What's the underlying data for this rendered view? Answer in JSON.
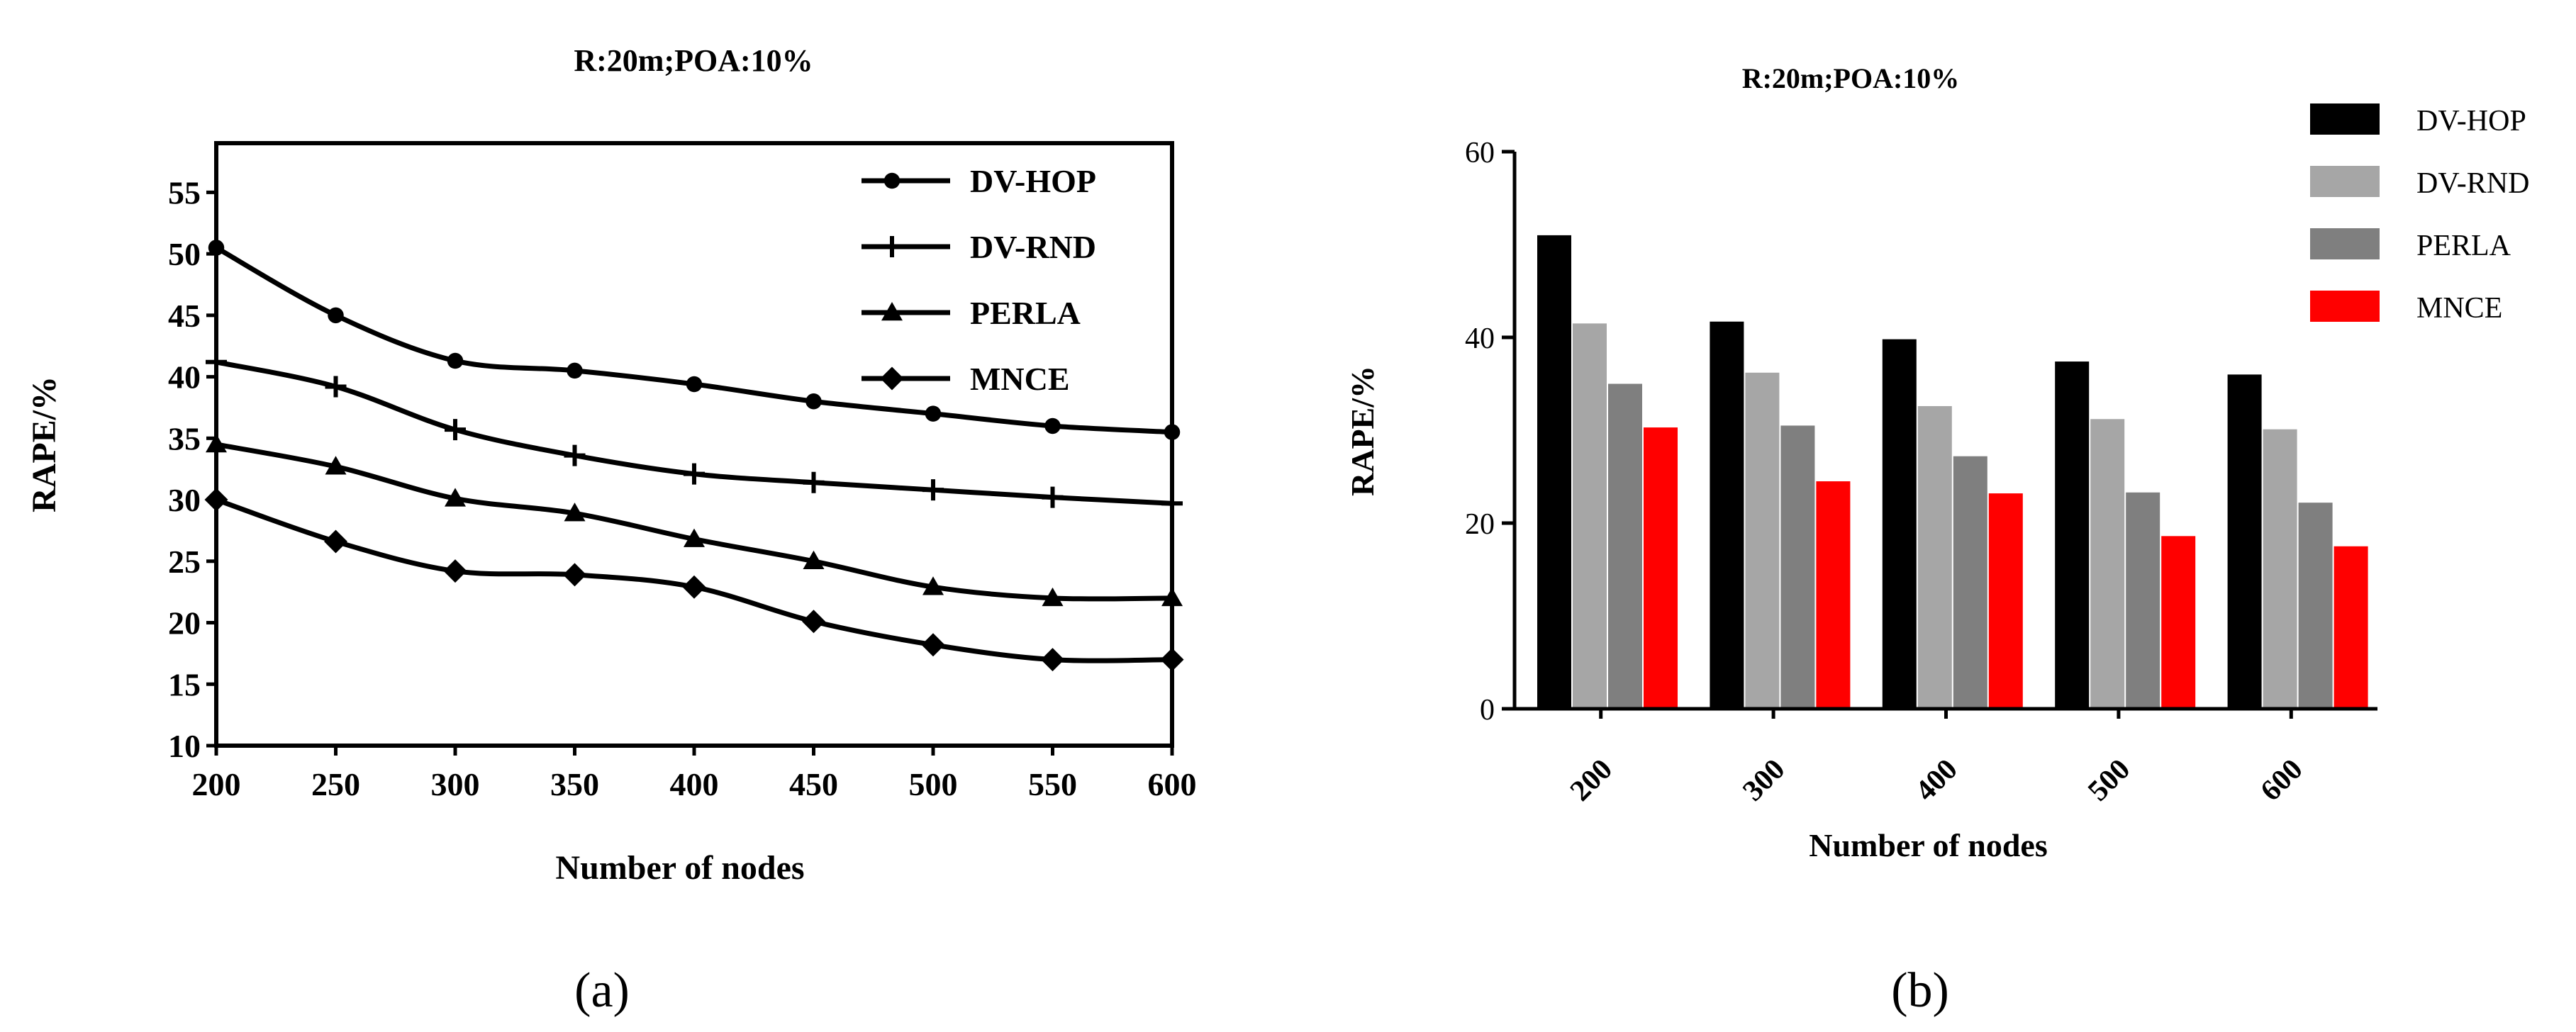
{
  "chart_data": [
    {
      "panel_label": "(a)",
      "type": "line",
      "title": "R:20m;POA:10%",
      "xlabel": "Number of nodes",
      "ylabel": "RAPE/%",
      "x": [
        200,
        250,
        300,
        350,
        400,
        450,
        500,
        550,
        600
      ],
      "xlim": [
        200,
        600
      ],
      "ylim": [
        10,
        59
      ],
      "xticks": [
        "200",
        "250",
        "300",
        "350",
        "400",
        "450",
        "500",
        "550",
        "600"
      ],
      "yticks": [
        "10",
        "15",
        "20",
        "25",
        "30",
        "35",
        "40",
        "45",
        "50",
        "55"
      ],
      "ytick_values": [
        10,
        15,
        20,
        25,
        30,
        35,
        40,
        45,
        50,
        55
      ],
      "series": [
        {
          "name": "DV-HOP",
          "marker": "circle",
          "values": [
            50.5,
            45,
            41.3,
            40.5,
            39.4,
            38,
            37,
            36,
            35.5
          ]
        },
        {
          "name": "DV-RND",
          "marker": "plus",
          "values": [
            41.2,
            39.2,
            35.7,
            33.6,
            32.1,
            31.4,
            30.8,
            30.2,
            29.7
          ]
        },
        {
          "name": "PERLA",
          "marker": "triangle",
          "values": [
            34.5,
            32.7,
            30.1,
            28.9,
            26.8,
            25,
            22.9,
            22,
            22
          ]
        },
        {
          "name": "MNCE",
          "marker": "diamond",
          "values": [
            30,
            26.6,
            24.2,
            23.9,
            22.9,
            20.1,
            18.2,
            17,
            17
          ]
        }
      ],
      "legend": "top-right",
      "grid": false
    },
    {
      "panel_label": "(b)",
      "type": "bar",
      "title": "R:20m;POA:10%",
      "xlabel": "Number of nodes",
      "ylabel": "RAPE/%",
      "categories": [
        "200",
        "300",
        "400",
        "500",
        "600"
      ],
      "ylim": [
        0,
        60
      ],
      "yticks": [
        "0",
        "20",
        "40",
        "60"
      ],
      "ytick_values": [
        0,
        20,
        40,
        60
      ],
      "series": [
        {
          "name": "DV-HOP",
          "color": "#000000",
          "values": [
            51,
            41.7,
            39.8,
            37.4,
            36
          ]
        },
        {
          "name": "DV-RND",
          "color": "#a6a6a6",
          "values": [
            41.5,
            36.2,
            32.6,
            31.2,
            30.1
          ]
        },
        {
          "name": "PERLA",
          "color": "#7f7f7f",
          "values": [
            35,
            30.5,
            27.2,
            23.3,
            22.2
          ]
        },
        {
          "name": "MNCE",
          "color": "#ff0000",
          "values": [
            30.3,
            24.5,
            23.2,
            18.6,
            17.5
          ]
        }
      ],
      "legend": "top-right",
      "grid": false
    }
  ]
}
